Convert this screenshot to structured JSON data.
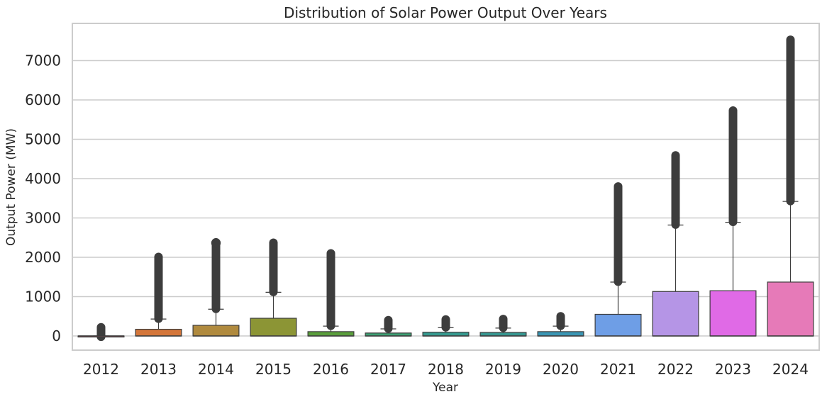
{
  "chart_data": {
    "type": "box",
    "title": "Distribution of Solar Power Output Over Years",
    "xlabel": "Year",
    "ylabel": "Output Power (MW)",
    "ylim": [
      -380,
      7950
    ],
    "yticks": [
      0,
      1000,
      2000,
      3000,
      4000,
      5000,
      6000,
      7000
    ],
    "grid": true,
    "legend": "none",
    "categories": [
      "2012",
      "2013",
      "2014",
      "2015",
      "2016",
      "2017",
      "2018",
      "2019",
      "2020",
      "2021",
      "2022",
      "2023",
      "2024"
    ],
    "series": [
      {
        "year": "2012",
        "color": "#e0606e",
        "q1": 0,
        "median": 0,
        "q3": 0,
        "whisker_low": 0,
        "whisker_high": 0,
        "outliers_low": -20,
        "outliers_high": 220,
        "outlier_marker": "circle"
      },
      {
        "year": "2013",
        "color": "#d4763a",
        "q1": 0,
        "median": 0,
        "q3": 170,
        "whisker_low": 0,
        "whisker_high": 430,
        "outliers_low": 440,
        "outliers_high": 2010,
        "outlier_marker": "circle"
      },
      {
        "year": "2014",
        "color": "#b08a3e",
        "q1": 0,
        "median": 0,
        "q3": 270,
        "whisker_low": 0,
        "whisker_high": 680,
        "outliers_low": 690,
        "outliers_high": 2380,
        "outlier_marker": "circle"
      },
      {
        "year": "2015",
        "color": "#8c9535",
        "q1": 0,
        "median": 0,
        "q3": 450,
        "whisker_low": 0,
        "whisker_high": 1110,
        "outliers_low": 1120,
        "outliers_high": 2370,
        "outlier_marker": "circle"
      },
      {
        "year": "2016",
        "color": "#5a9e3c",
        "q1": 0,
        "median": 0,
        "q3": 110,
        "whisker_low": 0,
        "whisker_high": 250,
        "outliers_low": 260,
        "outliers_high": 2100,
        "outlier_marker": "circle"
      },
      {
        "year": "2017",
        "color": "#3c9e72",
        "q1": 0,
        "median": 0,
        "q3": 75,
        "whisker_low": 0,
        "whisker_high": 180,
        "outliers_low": 190,
        "outliers_high": 400,
        "outlier_marker": "circle"
      },
      {
        "year": "2018",
        "color": "#35998e",
        "q1": 0,
        "median": 0,
        "q3": 95,
        "whisker_low": 0,
        "whisker_high": 210,
        "outliers_low": 220,
        "outliers_high": 420,
        "outlier_marker": "circle"
      },
      {
        "year": "2019",
        "color": "#36968f",
        "q1": 0,
        "median": 0,
        "q3": 90,
        "whisker_low": 0,
        "whisker_high": 200,
        "outliers_low": 210,
        "outliers_high": 430,
        "outlier_marker": "circle"
      },
      {
        "year": "2020",
        "color": "#3a95b3",
        "q1": 0,
        "median": 0,
        "q3": 110,
        "whisker_low": 0,
        "whisker_high": 250,
        "outliers_low": 260,
        "outliers_high": 500,
        "outlier_marker": "circle"
      },
      {
        "year": "2021",
        "color": "#6e9ee6",
        "q1": 0,
        "median": 0,
        "q3": 550,
        "whisker_low": 0,
        "whisker_high": 1370,
        "outliers_low": 1380,
        "outliers_high": 3800,
        "outlier_marker": "circle"
      },
      {
        "year": "2022",
        "color": "#b595e6",
        "q1": 0,
        "median": 0,
        "q3": 1130,
        "whisker_low": 0,
        "whisker_high": 2820,
        "outliers_low": 2830,
        "outliers_high": 4590,
        "outlier_marker": "circle"
      },
      {
        "year": "2023",
        "color": "#e06ae6",
        "q1": 0,
        "median": 0,
        "q3": 1150,
        "whisker_low": 0,
        "whisker_high": 2890,
        "outliers_low": 2900,
        "outliers_high": 5730,
        "outlier_marker": "circle"
      },
      {
        "year": "2024",
        "color": "#e67ab8",
        "q1": 0,
        "median": 0,
        "q3": 1370,
        "whisker_low": 0,
        "whisker_high": 3420,
        "outliers_low": 3430,
        "outliers_high": 7530,
        "outlier_marker": "circle"
      }
    ]
  }
}
